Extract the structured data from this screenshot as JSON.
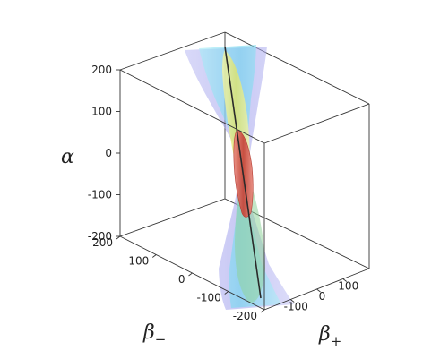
{
  "chart_data": {
    "type": "3d-surface",
    "axes": {
      "z": {
        "label": "α",
        "ticks": [
          200,
          100,
          0,
          -100,
          -200
        ],
        "range": [
          -200,
          200
        ]
      },
      "y": {
        "label": "β",
        "label_sub": "−",
        "ticks": [
          200,
          100,
          0,
          -100,
          -200
        ],
        "range": [
          -200,
          200
        ]
      },
      "x": {
        "label": "β",
        "label_sub": "+",
        "ticks": [
          100,
          0,
          -100
        ],
        "range": [
          -200,
          200
        ]
      }
    },
    "surfaces": [
      {
        "name": "outer-cone",
        "color": "#8c8ce6",
        "opacity": 0.35
      },
      {
        "name": "middle-cone",
        "color": "#7fe0f0",
        "opacity": 0.45
      },
      {
        "name": "yellow-ellipsoid",
        "color": "#e8ec7a",
        "opacity": 0.6
      },
      {
        "name": "green-ellipsoid",
        "color": "#8fd49a",
        "opacity": 0.45
      },
      {
        "name": "red-ellipsoid",
        "color": "#d65a4e",
        "opacity": 0.85
      }
    ],
    "line": {
      "name": "degeneracy-line",
      "color": "#2a2a2a"
    },
    "grid": false,
    "legend": "none"
  }
}
